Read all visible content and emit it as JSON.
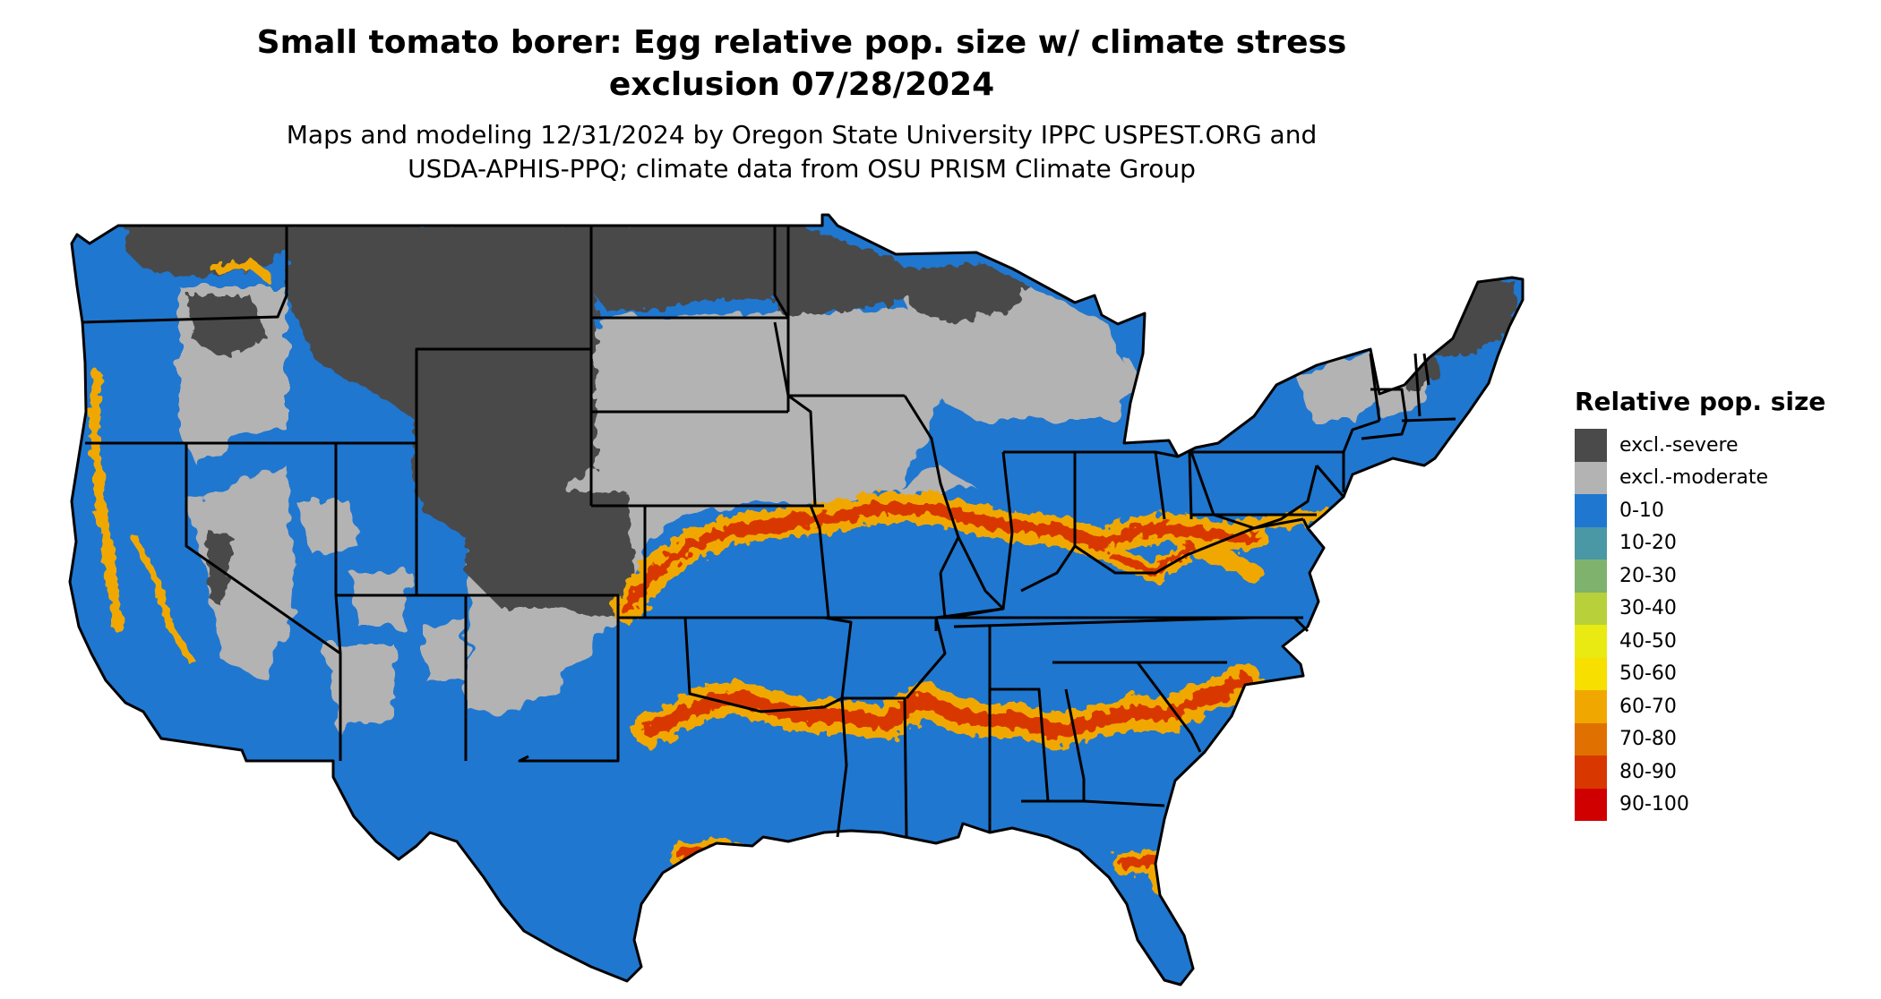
{
  "title": {
    "line1": "Small tomato borer: Egg relative pop. size w/ climate stress",
    "line2": "exclusion 07/28/2024"
  },
  "subtitle": {
    "line1": "Maps and modeling 12/31/2024 by Oregon State University IPPC USPEST.ORG and",
    "line2": "USDA-APHIS-PPQ; climate data from OSU PRISM Climate Group"
  },
  "legend": {
    "title": "Relative pop. size",
    "items": [
      {
        "label": "excl.-severe",
        "color": "#4a4a4a"
      },
      {
        "label": "excl.-moderate",
        "color": "#b3b3b3"
      },
      {
        "label": "0-10",
        "color": "#1f77d0"
      },
      {
        "label": "10-20",
        "color": "#4a97a6"
      },
      {
        "label": "20-30",
        "color": "#7fb26c"
      },
      {
        "label": "30-40",
        "color": "#b8d13a"
      },
      {
        "label": "40-50",
        "color": "#e8ea12"
      },
      {
        "label": "50-60",
        "color": "#f7df00"
      },
      {
        "label": "60-70",
        "color": "#f0a800"
      },
      {
        "label": "70-80",
        "color": "#e07100"
      },
      {
        "label": "80-90",
        "color": "#d83800"
      },
      {
        "label": "90-100",
        "color": "#d10000"
      }
    ]
  },
  "map": {
    "region": "contiguous United States",
    "colors": {
      "severe": "#4a4a4a",
      "moderate": "#b3b3b3",
      "low": "#1f77d0",
      "high_band": "#f0a800",
      "peak_band": "#d83800",
      "border": "#000000"
    }
  }
}
